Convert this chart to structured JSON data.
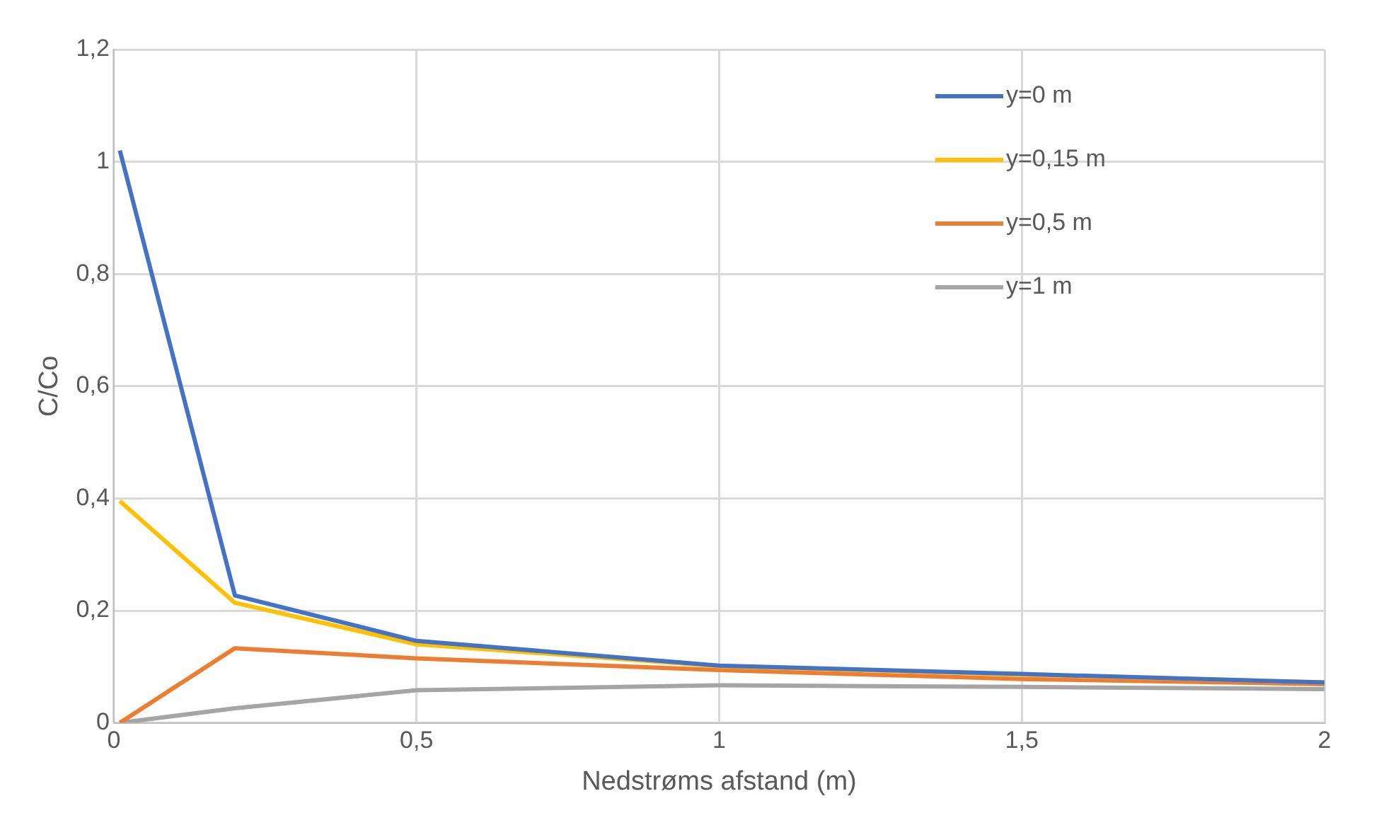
{
  "chart_data": {
    "type": "line",
    "xlabel": "Nedstrøms afstand (m)",
    "ylabel": "C/Co",
    "x": [
      0.01,
      0.2,
      0.5,
      1,
      1.5,
      2
    ],
    "series": [
      {
        "name": "y=0 m",
        "color": "#4472c4",
        "values": [
          1.02,
          0.227,
          0.146,
          0.102,
          0.087,
          0.072
        ]
      },
      {
        "name": "y=0,15 m",
        "color": "#ffc000",
        "values": [
          0.395,
          0.214,
          0.14,
          0.101,
          0.086,
          0.072
        ]
      },
      {
        "name": "y=0,5 m",
        "color": "#ed7d31",
        "values": [
          0,
          0.133,
          0.115,
          0.094,
          0.078,
          0.069
        ]
      },
      {
        "name": "y=1 m",
        "color": "#a5a5a5",
        "values": [
          0,
          0.026,
          0.058,
          0.067,
          0.064,
          0.06
        ]
      }
    ],
    "xlim": [
      0,
      2
    ],
    "xticks": [
      {
        "value": 0,
        "label": "0"
      },
      {
        "value": 0.5,
        "label": "0,5"
      },
      {
        "value": 1,
        "label": "1"
      },
      {
        "value": 1.5,
        "label": "1,5"
      },
      {
        "value": 2,
        "label": "2"
      }
    ],
    "ylim": [
      0,
      1.2
    ],
    "yticks": [
      {
        "value": 0,
        "label": "0"
      },
      {
        "value": 0.2,
        "label": "0,2"
      },
      {
        "value": 0.4,
        "label": "0,4"
      },
      {
        "value": 0.6,
        "label": "0,6"
      },
      {
        "value": 0.8,
        "label": "0,8"
      },
      {
        "value": 1,
        "label": "1"
      },
      {
        "value": 1.2,
        "label": "1,2"
      }
    ],
    "grid": true,
    "legend": "top right",
    "marker": "none",
    "line_style": "solid"
  }
}
